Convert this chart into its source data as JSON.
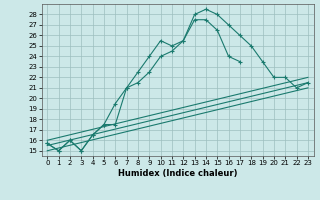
{
  "xlabel": "Humidex (Indice chaleur)",
  "bg_color": "#cce8e8",
  "grid_color": "#9dbfbf",
  "line_color": "#1a7a6e",
  "xlim": [
    -0.5,
    23.5
  ],
  "ylim": [
    14.5,
    29.0
  ],
  "yticks": [
    15,
    16,
    17,
    18,
    19,
    20,
    21,
    22,
    23,
    24,
    25,
    26,
    27,
    28
  ],
  "xticks": [
    0,
    1,
    2,
    3,
    4,
    5,
    6,
    7,
    8,
    9,
    10,
    11,
    12,
    13,
    14,
    15,
    16,
    17,
    18,
    19,
    20,
    21,
    22,
    23
  ],
  "series1_x": [
    0,
    1,
    2,
    3,
    4,
    5,
    6,
    7,
    8,
    9,
    10,
    11,
    12,
    13,
    14,
    15,
    16,
    17,
    18,
    19,
    20,
    21,
    22,
    23
  ],
  "series1_y": [
    15.7,
    15.0,
    16.0,
    15.0,
    16.5,
    17.5,
    19.5,
    21.0,
    22.5,
    24.0,
    25.5,
    25.0,
    25.5,
    28.0,
    28.5,
    28.0,
    27.0,
    26.0,
    25.0,
    23.5,
    22.0,
    22.0,
    21.0,
    21.5
  ],
  "series2_x": [
    0,
    1,
    2,
    3,
    4,
    5,
    6,
    7,
    8,
    9,
    10,
    11,
    12,
    13,
    14,
    15,
    16,
    17
  ],
  "series2_y": [
    15.7,
    15.0,
    16.0,
    15.0,
    16.5,
    17.5,
    17.5,
    21.0,
    21.5,
    22.5,
    24.0,
    24.5,
    25.5,
    27.5,
    27.5,
    26.5,
    24.0,
    23.5
  ],
  "line3_x": [
    0,
    23
  ],
  "line3_y": [
    16.0,
    22.0
  ],
  "line4_x": [
    0,
    23
  ],
  "line4_y": [
    15.5,
    21.5
  ],
  "line5_x": [
    0,
    23
  ],
  "line5_y": [
    15.0,
    21.0
  ]
}
